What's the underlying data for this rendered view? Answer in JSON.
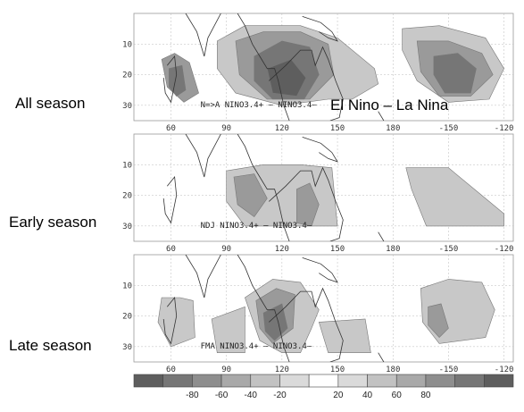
{
  "annotation": "El Nino – La Nina",
  "palette": [
    "#5e5e5e",
    "#767676",
    "#8e8e8e",
    "#a9a9a9",
    "#c2c2c2",
    "#dadada",
    "#ffffff",
    "#dadada",
    "#c2c2c2",
    "#a9a9a9",
    "#8e8e8e",
    "#767676",
    "#5e5e5e"
  ],
  "chart_data": {
    "type": "heatmap",
    "subtype": "filled-contour-maps",
    "x_ticks": [
      "60",
      "90",
      "120",
      "150",
      "180",
      "-150",
      "-120"
    ],
    "x_tick_values": [
      60,
      90,
      120,
      150,
      180,
      210,
      240
    ],
    "xlim": [
      40,
      245
    ],
    "y_ticks": [
      "10",
      "20",
      "30"
    ],
    "y_tick_values": [
      10,
      20,
      30
    ],
    "ylim": [
      0,
      35
    ],
    "colorbar": {
      "levels": [
        -100,
        -80,
        -60,
        -40,
        -20,
        0,
        20,
        40,
        60,
        80,
        100
      ],
      "tick_labels": [
        "-80",
        "-60",
        "-40",
        "-20",
        "20",
        "40",
        "60",
        "80"
      ]
    },
    "panels": [
      {
        "label": "All season",
        "caption": "N=>A NINO3.4+ – NINO3.4–",
        "blobs": [
          {
            "lon": [
              55,
              62,
              70,
              75,
              67,
              58
            ],
            "lat": [
              15,
              13,
              16,
              26,
              29,
              24
            ],
            "value": -40
          },
          {
            "lon": [
              59,
              66,
              68,
              63,
              59
            ],
            "lat": [
              18,
              17,
              25,
              27,
              24
            ],
            "value": -60
          },
          {
            "lon": [
              85,
              100,
              130,
              150,
              170,
              172,
              158,
              145,
              120,
              95,
              85
            ],
            "lat": [
              9,
              4,
              4,
              8,
              18,
              23,
              28,
              28,
              30,
              26,
              18
            ],
            "value": -20
          },
          {
            "lon": [
              95,
              110,
              130,
              145,
              148,
              135,
              112,
              97
            ],
            "lat": [
              9,
              6,
              6,
              10,
              20,
              28,
              28,
              20
            ],
            "value": -40
          },
          {
            "lon": [
              105,
              120,
              135,
              140,
              132,
              115,
              105
            ],
            "lat": [
              14,
              9,
              11,
              20,
              28,
              28,
              22
            ],
            "value": -60
          },
          {
            "lon": [
              112,
              125,
              133,
              128,
              115
            ],
            "lat": [
              18,
              15,
              21,
              27,
              26
            ],
            "value": -80
          },
          {
            "lon": [
              185,
              205,
              230,
              240,
              232,
              210,
              193,
              185
            ],
            "lat": [
              5,
              4,
              8,
              18,
              28,
              29,
              22,
              12
            ],
            "value": -20
          },
          {
            "lon": [
              193,
              210,
              228,
              234,
              222,
              205,
              195
            ],
            "lat": [
              9,
              9,
              13,
              20,
              27,
              27,
              19
            ],
            "value": -40
          },
          {
            "lon": [
              202,
              215,
              225,
              222,
              208,
              202
            ],
            "lat": [
              14,
              13,
              18,
              26,
              26,
              20
            ],
            "value": -60
          }
        ]
      },
      {
        "label": "Early season",
        "caption": "NDJ NINO3.4+ – NINO3.4–",
        "blobs": [
          {
            "lon": [
              90,
              110,
              130,
              147,
              150,
              128,
              100,
              90
            ],
            "lat": [
              12,
              10,
              10,
              11,
              30,
              30,
              30,
              22
            ],
            "value": -20
          },
          {
            "lon": [
              94,
              105,
              112,
              105,
              96
            ],
            "lat": [
              14,
              13,
              21,
              27,
              23
            ],
            "value": -40
          },
          {
            "lon": [
              128,
              135,
              140,
              136,
              128
            ],
            "lat": [
              18,
              16,
              23,
              30,
              29
            ],
            "value": -40
          },
          {
            "lon": [
              187,
              210,
              228,
              240,
              240,
              198,
              190
            ],
            "lat": [
              11,
              11,
              20,
              26,
              30,
              30,
              18
            ],
            "value": -20
          }
        ]
      },
      {
        "label": "Late season",
        "caption": "FMA NINO3.4+ – NINO3.4–",
        "blobs": [
          {
            "lon": [
              55,
              65,
              72,
              73,
              60,
              53
            ],
            "lat": [
              14,
              14,
              15,
              27,
              30,
              22
            ],
            "value": -20
          },
          {
            "lon": [
              100,
              115,
              130,
              140,
              136,
              130,
              120,
              108
            ],
            "lat": [
              14,
              8,
              9,
              18,
              24,
              32,
              32,
              28
            ],
            "value": -20
          },
          {
            "lon": [
              106,
              117,
              127,
              126,
              115,
              108
            ],
            "lat": [
              15,
              11,
              13,
              24,
              29,
              24
            ],
            "value": -40
          },
          {
            "lon": [
              110,
              120,
              123,
              116,
              111
            ],
            "lat": [
              19,
              16,
              24,
              28,
              25
            ],
            "value": -60
          },
          {
            "lon": [
              82,
              100,
              100,
              85
            ],
            "lat": [
              21,
              17,
              32,
              32
            ],
            "value": -20
          },
          {
            "lon": [
              140,
              165,
              168,
              145
            ],
            "lat": [
              22,
              21,
              32,
              32
            ],
            "value": -20
          },
          {
            "lon": [
              195,
              210,
              228,
              235,
              230,
              205,
              196
            ],
            "lat": [
              11,
              8,
              9,
              18,
              27,
              29,
              22
            ],
            "value": -20
          },
          {
            "lon": [
              199,
              206,
              210,
              205,
              199
            ],
            "lat": [
              17,
              16,
              24,
              27,
              23
            ],
            "value": -40
          }
        ]
      }
    ]
  }
}
